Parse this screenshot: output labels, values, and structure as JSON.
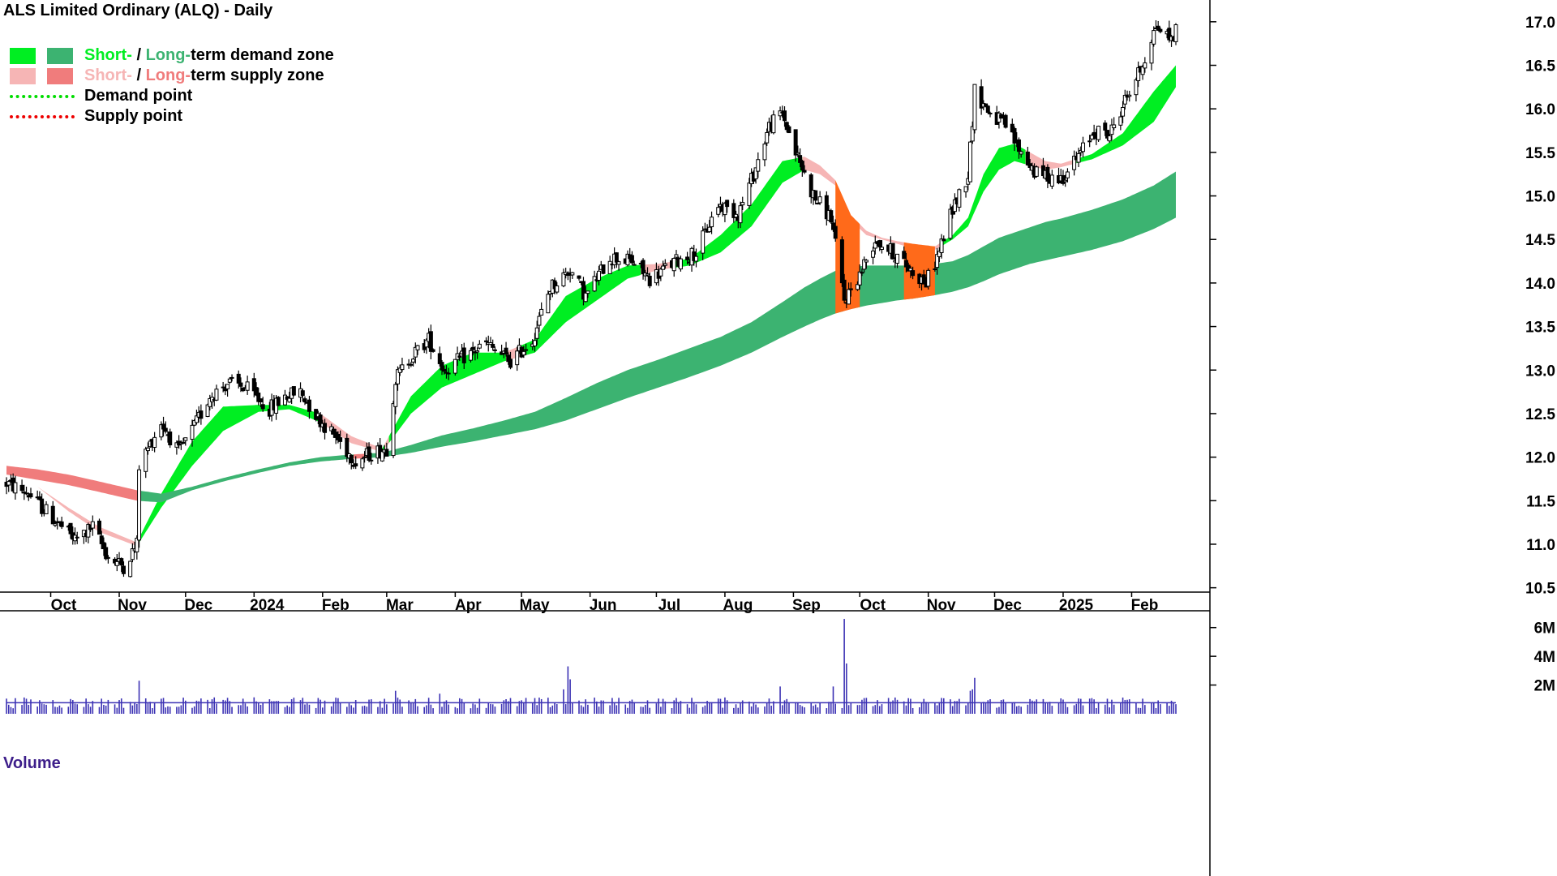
{
  "chart_title": "ALS Limited Ordinary (ALQ) - Daily",
  "legend": {
    "demand_short": "Short-",
    "demand_sep": " / ",
    "demand_long": "Long-",
    "demand_text": "term demand zone",
    "supply_short": "Short-",
    "supply_sep": " / ",
    "supply_long": "Long-",
    "supply_text": "term supply zone",
    "demand_point": "Demand point",
    "supply_point": "Supply point"
  },
  "volume_title": "Volume",
  "colors": {
    "short_demand": "#00ee22",
    "long_demand": "#3cb371",
    "short_supply": "#f6b5b5",
    "long_supply": "#f07c7c",
    "overlap": "#ff6a1a",
    "volume": "#3c32b4",
    "demand_point": "#00dd00",
    "supply_point": "#ee0000"
  },
  "chart_data": {
    "type": "candlestick",
    "price_ylim": [
      10.45,
      17.25
    ],
    "price_ticks": [
      "10.5",
      "11.0",
      "11.5",
      "12.0",
      "12.5",
      "13.0",
      "13.5",
      "14.0",
      "14.5",
      "15.0",
      "15.5",
      "16.0",
      "16.5",
      "17.0"
    ],
    "volume_ylim": [
      0,
      7000000
    ],
    "volume_ticks": [
      {
        "value": 2000000,
        "label": "2M"
      },
      {
        "value": 4000000,
        "label": "4M"
      },
      {
        "value": 6000000,
        "label": "6M"
      }
    ],
    "x_range": [
      "2023-09-11",
      "2025-02-21"
    ],
    "months": [
      {
        "date": "2023-10-01",
        "label": "Oct"
      },
      {
        "date": "2023-11-01",
        "label": "Nov"
      },
      {
        "date": "2023-12-01",
        "label": "Dec"
      },
      {
        "date": "2024-01-01",
        "label": "2024"
      },
      {
        "date": "2024-02-01",
        "label": "Feb"
      },
      {
        "date": "2024-03-01",
        "label": "Mar"
      },
      {
        "date": "2024-04-01",
        "label": "Apr"
      },
      {
        "date": "2024-05-01",
        "label": "May"
      },
      {
        "date": "2024-06-01",
        "label": "Jun"
      },
      {
        "date": "2024-07-01",
        "label": "Jul"
      },
      {
        "date": "2024-08-01",
        "label": "Aug"
      },
      {
        "date": "2024-09-01",
        "label": "Sep"
      },
      {
        "date": "2024-10-01",
        "label": "Oct"
      },
      {
        "date": "2024-11-01",
        "label": "Nov"
      },
      {
        "date": "2024-12-01",
        "label": "Dec"
      },
      {
        "date": "2025-01-01",
        "label": "2025"
      },
      {
        "date": "2025-02-01",
        "label": "Feb"
      }
    ],
    "close_anchors": [
      [
        "2023-09-11",
        11.7
      ],
      [
        "2023-09-20",
        11.6
      ],
      [
        "2023-10-02",
        11.3
      ],
      [
        "2023-10-12",
        11.05
      ],
      [
        "2023-10-20",
        11.2
      ],
      [
        "2023-10-27",
        10.85
      ],
      [
        "2023-11-03",
        10.75
      ],
      [
        "2023-11-08",
        10.95
      ],
      [
        "2023-11-09",
        11.0
      ],
      [
        "2023-11-10",
        11.9
      ],
      [
        "2023-11-20",
        12.4
      ],
      [
        "2023-11-28",
        12.05
      ],
      [
        "2023-12-05",
        12.35
      ],
      [
        "2023-12-12",
        12.7
      ],
      [
        "2023-12-20",
        12.85
      ],
      [
        "2023-12-28",
        12.8
      ],
      [
        "2024-01-08",
        12.55
      ],
      [
        "2024-01-15",
        12.7
      ],
      [
        "2024-01-22",
        12.75
      ],
      [
        "2024-01-30",
        12.45
      ],
      [
        "2024-02-08",
        12.2
      ],
      [
        "2024-02-16",
        11.95
      ],
      [
        "2024-02-23",
        12.05
      ],
      [
        "2024-03-01",
        12.1
      ],
      [
        "2024-03-05",
        12.9
      ],
      [
        "2024-03-12",
        13.15
      ],
      [
        "2024-03-20",
        13.35
      ],
      [
        "2024-03-27",
        13.0
      ],
      [
        "2024-04-05",
        13.15
      ],
      [
        "2024-04-15",
        13.3
      ],
      [
        "2024-04-26",
        13.1
      ],
      [
        "2024-05-06",
        13.35
      ],
      [
        "2024-05-14",
        13.95
      ],
      [
        "2024-05-23",
        14.15
      ],
      [
        "2024-05-30",
        13.85
      ],
      [
        "2024-06-10",
        14.3
      ],
      [
        "2024-06-20",
        14.25
      ],
      [
        "2024-06-28",
        14.05
      ],
      [
        "2024-07-10",
        14.25
      ],
      [
        "2024-07-19",
        14.35
      ],
      [
        "2024-07-29",
        14.9
      ],
      [
        "2024-08-07",
        14.8
      ],
      [
        "2024-08-14",
        15.25
      ],
      [
        "2024-08-21",
        15.8
      ],
      [
        "2024-08-27",
        15.95
      ],
      [
        "2024-09-02",
        15.5
      ],
      [
        "2024-09-10",
        15.0
      ],
      [
        "2024-09-18",
        14.75
      ],
      [
        "2024-09-24",
        13.8
      ],
      [
        "2024-10-01",
        14.1
      ],
      [
        "2024-10-08",
        14.5
      ],
      [
        "2024-10-16",
        14.35
      ],
      [
        "2024-10-24",
        14.15
      ],
      [
        "2024-10-31",
        14.0
      ],
      [
        "2024-11-05",
        14.3
      ],
      [
        "2024-11-12",
        14.85
      ],
      [
        "2024-11-19",
        15.25
      ],
      [
        "2024-11-22",
        16.2
      ],
      [
        "2024-11-29",
        15.95
      ],
      [
        "2024-12-06",
        15.8
      ],
      [
        "2024-12-13",
        15.5
      ],
      [
        "2024-12-20",
        15.25
      ],
      [
        "2024-12-31",
        15.2
      ],
      [
        "2025-01-08",
        15.45
      ],
      [
        "2025-01-15",
        15.75
      ],
      [
        "2025-01-22",
        15.7
      ],
      [
        "2025-01-29",
        16.1
      ],
      [
        "2025-02-05",
        16.45
      ],
      [
        "2025-02-12",
        16.95
      ],
      [
        "2025-02-19",
        16.8
      ],
      [
        "2025-02-21",
        16.9
      ]
    ],
    "short_zone": [
      [
        "2023-09-11",
        11.74,
        11.74
      ],
      [
        "2023-09-25",
        11.66,
        11.66
      ],
      [
        "2023-10-09",
        11.38,
        11.42
      ],
      [
        "2023-10-23",
        11.14,
        11.2
      ],
      [
        "2023-11-09",
        10.98,
        11.02
      ],
      [
        "2023-11-20",
        11.42,
        11.58
      ],
      [
        "2023-12-04",
        11.9,
        12.18
      ],
      [
        "2023-12-18",
        12.3,
        12.58
      ],
      [
        "2024-01-03",
        12.52,
        12.6
      ],
      [
        "2024-01-17",
        12.55,
        12.6
      ],
      [
        "2024-01-31",
        12.4,
        12.5
      ],
      [
        "2024-02-14",
        12.16,
        12.24
      ],
      [
        "2024-02-28",
        12.06,
        12.1
      ],
      [
        "2024-03-12",
        12.5,
        12.7
      ],
      [
        "2024-03-26",
        12.8,
        13.05
      ],
      [
        "2024-04-09",
        12.95,
        13.2
      ],
      [
        "2024-04-23",
        13.1,
        13.2
      ],
      [
        "2024-05-07",
        13.2,
        13.35
      ],
      [
        "2024-05-21",
        13.55,
        13.85
      ],
      [
        "2024-06-04",
        13.8,
        14.05
      ],
      [
        "2024-06-18",
        14.05,
        14.2
      ],
      [
        "2024-07-02",
        14.15,
        14.22
      ],
      [
        "2024-07-16",
        14.2,
        14.28
      ],
      [
        "2024-07-30",
        14.35,
        14.55
      ],
      [
        "2024-08-13",
        14.65,
        14.9
      ],
      [
        "2024-08-27",
        15.15,
        15.4
      ],
      [
        "2024-09-06",
        15.3,
        15.45
      ],
      [
        "2024-09-13",
        15.25,
        15.35
      ],
      [
        "2024-09-20",
        15.12,
        15.18
      ],
      [
        "2024-09-27",
        14.72,
        14.78
      ],
      [
        "2024-10-04",
        14.55,
        14.6
      ],
      [
        "2024-10-11",
        14.5,
        14.52
      ],
      [
        "2024-10-18",
        14.45,
        14.48
      ],
      [
        "2024-10-25",
        14.4,
        14.45
      ],
      [
        "2024-11-04",
        14.38,
        14.42
      ],
      [
        "2024-11-12",
        14.5,
        14.55
      ],
      [
        "2024-11-19",
        14.65,
        14.75
      ],
      [
        "2024-11-26",
        15.05,
        15.25
      ],
      [
        "2024-12-03",
        15.3,
        15.55
      ],
      [
        "2024-12-10",
        15.4,
        15.6
      ],
      [
        "2024-12-17",
        15.35,
        15.5
      ],
      [
        "2024-12-24",
        15.3,
        15.4
      ],
      [
        "2024-12-31",
        15.33,
        15.37
      ],
      [
        "2025-01-14",
        15.42,
        15.48
      ],
      [
        "2025-01-28",
        15.58,
        15.72
      ],
      [
        "2025-02-11",
        15.85,
        16.2
      ],
      [
        "2025-02-21",
        16.25,
        16.5
      ]
    ],
    "long_zone": [
      [
        "2023-09-11",
        11.8,
        11.9
      ],
      [
        "2023-09-25",
        11.74,
        11.86
      ],
      [
        "2023-10-09",
        11.68,
        11.8
      ],
      [
        "2023-10-23",
        11.6,
        11.72
      ],
      [
        "2023-11-09",
        11.5,
        11.62
      ],
      [
        "2023-11-20",
        11.48,
        11.58
      ],
      [
        "2023-12-04",
        11.62,
        11.66
      ],
      [
        "2023-12-18",
        11.72,
        11.76
      ],
      [
        "2024-01-03",
        11.82,
        11.86
      ],
      [
        "2024-01-17",
        11.9,
        11.94
      ],
      [
        "2024-01-31",
        11.95,
        12.0
      ],
      [
        "2024-02-14",
        11.98,
        12.03
      ],
      [
        "2024-02-28",
        12.0,
        12.05
      ],
      [
        "2024-03-12",
        12.05,
        12.14
      ],
      [
        "2024-03-26",
        12.12,
        12.25
      ],
      [
        "2024-04-09",
        12.18,
        12.33
      ],
      [
        "2024-04-23",
        12.25,
        12.42
      ],
      [
        "2024-05-07",
        12.32,
        12.52
      ],
      [
        "2024-05-21",
        12.42,
        12.68
      ],
      [
        "2024-06-04",
        12.55,
        12.85
      ],
      [
        "2024-06-18",
        12.68,
        13.0
      ],
      [
        "2024-07-02",
        12.8,
        13.12
      ],
      [
        "2024-07-16",
        12.92,
        13.25
      ],
      [
        "2024-07-30",
        13.05,
        13.38
      ],
      [
        "2024-08-13",
        13.2,
        13.55
      ],
      [
        "2024-08-27",
        13.38,
        13.78
      ],
      [
        "2024-09-06",
        13.5,
        13.95
      ],
      [
        "2024-09-13",
        13.58,
        14.05
      ],
      [
        "2024-09-20",
        13.65,
        14.14
      ],
      [
        "2024-09-27",
        13.7,
        14.18
      ],
      [
        "2024-10-04",
        13.74,
        14.2
      ],
      [
        "2024-10-11",
        13.77,
        14.2
      ],
      [
        "2024-10-18",
        13.8,
        14.2
      ],
      [
        "2024-10-25",
        13.82,
        14.2
      ],
      [
        "2024-11-04",
        13.86,
        14.22
      ],
      [
        "2024-11-12",
        13.9,
        14.25
      ],
      [
        "2024-11-19",
        13.95,
        14.32
      ],
      [
        "2024-11-26",
        14.02,
        14.42
      ],
      [
        "2024-12-03",
        14.1,
        14.52
      ],
      [
        "2024-12-10",
        14.16,
        14.58
      ],
      [
        "2024-12-17",
        14.22,
        14.64
      ],
      [
        "2024-12-24",
        14.26,
        14.7
      ],
      [
        "2024-12-31",
        14.3,
        14.74
      ],
      [
        "2025-01-14",
        14.38,
        14.84
      ],
      [
        "2025-01-28",
        14.48,
        14.96
      ],
      [
        "2025-02-11",
        14.62,
        15.12
      ],
      [
        "2025-02-21",
        14.75,
        15.28
      ]
    ],
    "volume_baseline": 850000,
    "volume_spikes": [
      [
        "2023-11-10",
        2300000
      ],
      [
        "2024-03-05",
        1600000
      ],
      [
        "2024-03-25",
        1400000
      ],
      [
        "2024-05-20",
        1700000
      ],
      [
        "2024-05-22",
        3300000
      ],
      [
        "2024-05-23",
        2400000
      ],
      [
        "2024-08-26",
        1900000
      ],
      [
        "2024-09-19",
        1900000
      ],
      [
        "2024-09-24",
        6600000
      ],
      [
        "2024-09-25",
        3500000
      ],
      [
        "2024-11-20",
        1600000
      ],
      [
        "2024-11-21",
        1700000
      ],
      [
        "2024-11-22",
        2500000
      ]
    ]
  }
}
